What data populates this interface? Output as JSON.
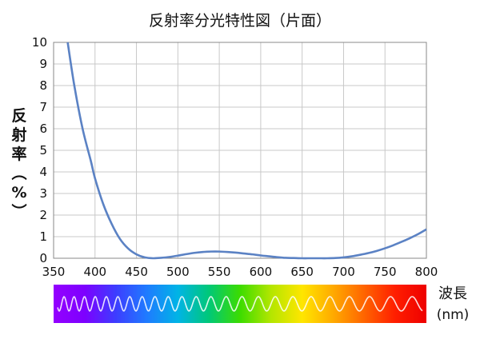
{
  "chart_data": {
    "type": "line",
    "title": "反射率分光特性図（片面）",
    "xlabel": "波長",
    "xunit": "(nm)",
    "ylabel_chars": [
      "反",
      "射",
      "率",
      "（",
      "%",
      "）"
    ],
    "xlim": [
      350,
      800
    ],
    "ylim": [
      0,
      10
    ],
    "xticks": [
      350,
      400,
      450,
      500,
      550,
      600,
      650,
      700,
      750,
      800
    ],
    "yticks": [
      0,
      1,
      2,
      3,
      4,
      5,
      6,
      7,
      8,
      9,
      10
    ],
    "grid": true,
    "series": [
      {
        "color": "#5b82c4",
        "x": [
          367,
          375,
          385,
          395,
          400,
          410,
          420,
          430,
          440,
          450,
          460,
          470,
          480,
          490,
          500,
          510,
          520,
          530,
          540,
          550,
          560,
          570,
          580,
          590,
          600,
          610,
          620,
          630,
          640,
          650,
          660,
          670,
          680,
          690,
          700,
          710,
          720,
          730,
          740,
          750,
          760,
          770,
          780,
          790,
          800
        ],
        "y": [
          10.0,
          8.0,
          6.0,
          4.5,
          3.7,
          2.5,
          1.6,
          0.9,
          0.45,
          0.18,
          0.04,
          0.0,
          0.02,
          0.06,
          0.12,
          0.19,
          0.25,
          0.29,
          0.31,
          0.31,
          0.29,
          0.26,
          0.22,
          0.18,
          0.13,
          0.09,
          0.05,
          0.02,
          0.01,
          0.0,
          0.0,
          0.0,
          0.0,
          0.01,
          0.04,
          0.09,
          0.16,
          0.24,
          0.34,
          0.46,
          0.6,
          0.76,
          0.93,
          1.12,
          1.34
        ]
      }
    ],
    "spectrum_colors": [
      "#9400ff",
      "#7d00ff",
      "#3d3dff",
      "#1f7bff",
      "#00b4e6",
      "#00c878",
      "#3cdc00",
      "#b4e600",
      "#ffe600",
      "#ffaa00",
      "#ff6400",
      "#ff1e00",
      "#ee0000"
    ]
  }
}
